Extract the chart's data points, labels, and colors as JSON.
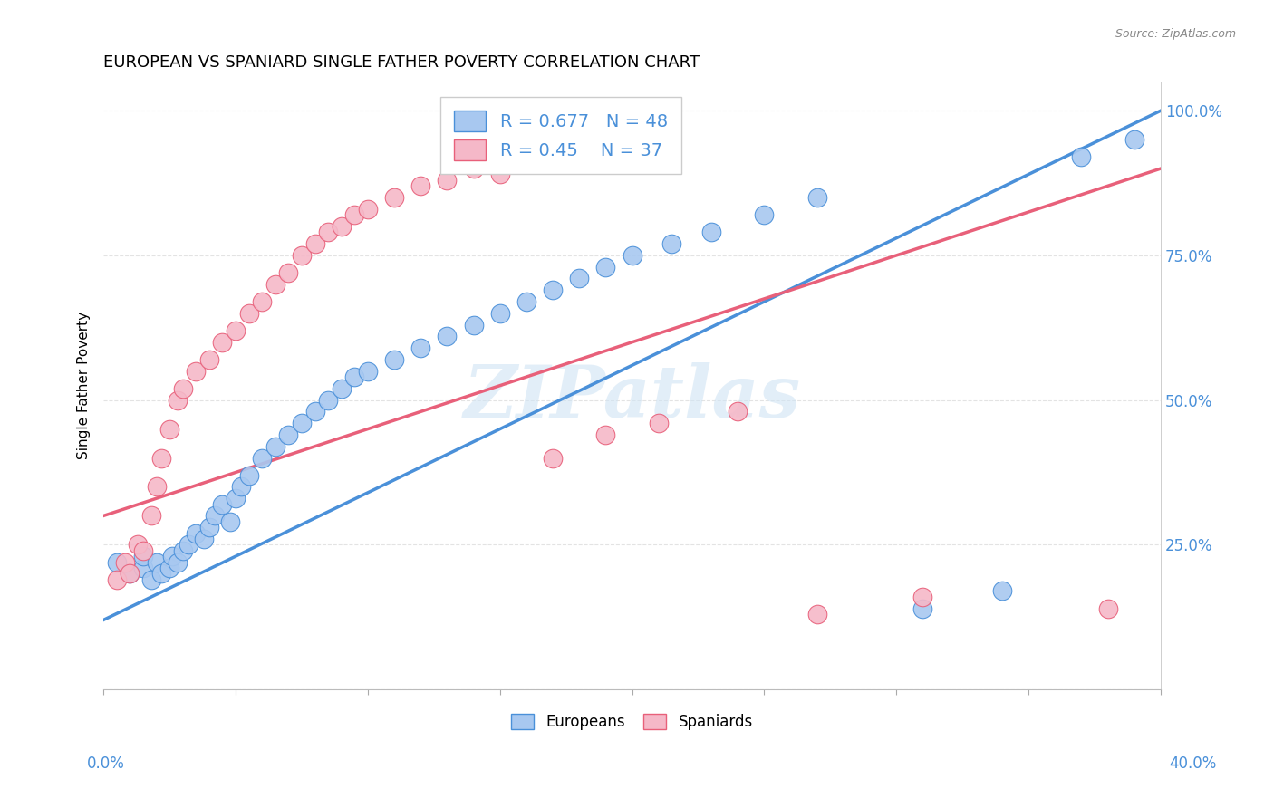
{
  "title": "EUROPEAN VS SPANIARD SINGLE FATHER POVERTY CORRELATION CHART",
  "source_text": "Source: ZipAtlas.com",
  "ylabel": "Single Father Poverty",
  "xlim": [
    0.0,
    0.4
  ],
  "ylim": [
    0.0,
    1.05
  ],
  "R_european": 0.677,
  "N_european": 48,
  "R_spaniard": 0.45,
  "N_spaniard": 37,
  "color_european": "#a8c8f0",
  "color_spaniard": "#f5b8c8",
  "line_color_european": "#4a90d9",
  "line_color_spaniard": "#e8607a",
  "legend_label_european": "Europeans",
  "legend_label_spaniard": "Spaniards",
  "watermark_text": "ZIPatlas",
  "eur_line_x0": 0.0,
  "eur_line_y0": 0.12,
  "eur_line_x1": 0.4,
  "eur_line_y1": 1.0,
  "spa_line_x0": 0.0,
  "spa_line_y0": 0.3,
  "spa_line_x1": 0.4,
  "spa_line_y1": 0.9,
  "european_x": [
    0.005,
    0.01,
    0.015,
    0.015,
    0.018,
    0.02,
    0.022,
    0.025,
    0.026,
    0.028,
    0.03,
    0.032,
    0.035,
    0.038,
    0.04,
    0.042,
    0.045,
    0.048,
    0.05,
    0.052,
    0.055,
    0.06,
    0.065,
    0.07,
    0.075,
    0.08,
    0.085,
    0.09,
    0.095,
    0.1,
    0.11,
    0.12,
    0.13,
    0.14,
    0.15,
    0.16,
    0.17,
    0.18,
    0.19,
    0.2,
    0.215,
    0.23,
    0.25,
    0.27,
    0.31,
    0.34,
    0.37,
    0.39
  ],
  "european_y": [
    0.22,
    0.2,
    0.21,
    0.23,
    0.19,
    0.22,
    0.2,
    0.21,
    0.23,
    0.22,
    0.24,
    0.25,
    0.27,
    0.26,
    0.28,
    0.3,
    0.32,
    0.29,
    0.33,
    0.35,
    0.37,
    0.4,
    0.42,
    0.44,
    0.46,
    0.48,
    0.5,
    0.52,
    0.54,
    0.55,
    0.57,
    0.59,
    0.61,
    0.63,
    0.65,
    0.67,
    0.69,
    0.71,
    0.73,
    0.75,
    0.77,
    0.79,
    0.82,
    0.85,
    0.14,
    0.17,
    0.92,
    0.95
  ],
  "spaniard_x": [
    0.005,
    0.008,
    0.01,
    0.013,
    0.015,
    0.018,
    0.02,
    0.022,
    0.025,
    0.028,
    0.03,
    0.035,
    0.04,
    0.045,
    0.05,
    0.055,
    0.06,
    0.065,
    0.07,
    0.075,
    0.08,
    0.085,
    0.09,
    0.095,
    0.1,
    0.11,
    0.12,
    0.13,
    0.14,
    0.15,
    0.17,
    0.19,
    0.21,
    0.24,
    0.27,
    0.31,
    0.38
  ],
  "spaniard_y": [
    0.19,
    0.22,
    0.2,
    0.25,
    0.24,
    0.3,
    0.35,
    0.4,
    0.45,
    0.5,
    0.52,
    0.55,
    0.57,
    0.6,
    0.62,
    0.65,
    0.67,
    0.7,
    0.72,
    0.75,
    0.77,
    0.79,
    0.8,
    0.82,
    0.83,
    0.85,
    0.87,
    0.88,
    0.9,
    0.89,
    0.4,
    0.44,
    0.46,
    0.48,
    0.13,
    0.16,
    0.14
  ]
}
